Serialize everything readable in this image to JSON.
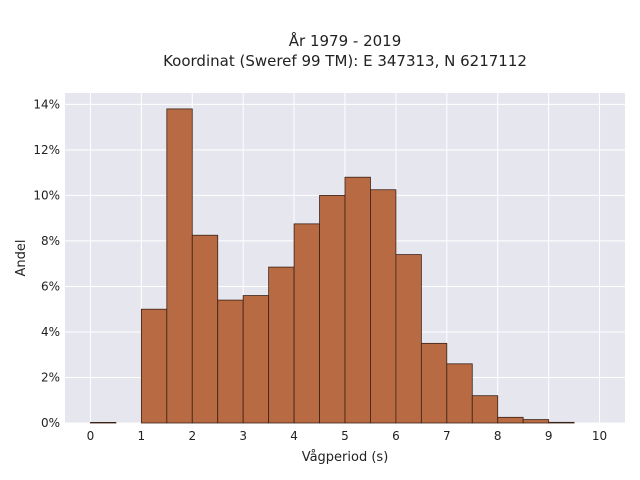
{
  "chart_data": {
    "type": "bar",
    "title_lines": [
      "År 1979 - 2019",
      "Koordinat (Sweref 99 TM): E 347313, N 6217112"
    ],
    "xlabel": "Vågperiod (s)",
    "ylabel": "Andel",
    "xlim": [
      -0.5,
      10.5
    ],
    "ylim": [
      0,
      14.5
    ],
    "xticks": [
      0,
      1,
      2,
      3,
      4,
      5,
      6,
      7,
      8,
      9,
      10
    ],
    "xtick_labels": [
      "0",
      "1",
      "2",
      "3",
      "4",
      "5",
      "6",
      "7",
      "8",
      "9",
      "10"
    ],
    "yticks": [
      0,
      2,
      4,
      6,
      8,
      10,
      12,
      14
    ],
    "ytick_labels": [
      "0%",
      "2%",
      "4%",
      "6%",
      "8%",
      "10%",
      "12%",
      "14%"
    ],
    "grid": true,
    "bin_width": 0.5,
    "bins": [
      {
        "start": 0.0,
        "value": 0.02
      },
      {
        "start": 1.0,
        "value": 5.0
      },
      {
        "start": 1.5,
        "value": 13.8
      },
      {
        "start": 2.0,
        "value": 8.25
      },
      {
        "start": 2.5,
        "value": 5.4
      },
      {
        "start": 3.0,
        "value": 5.6
      },
      {
        "start": 3.5,
        "value": 6.85
      },
      {
        "start": 4.0,
        "value": 8.75
      },
      {
        "start": 4.5,
        "value": 10.0
      },
      {
        "start": 5.0,
        "value": 10.8
      },
      {
        "start": 5.5,
        "value": 10.25
      },
      {
        "start": 6.0,
        "value": 7.4
      },
      {
        "start": 6.5,
        "value": 3.5
      },
      {
        "start": 7.0,
        "value": 2.6
      },
      {
        "start": 7.5,
        "value": 1.2
      },
      {
        "start": 8.0,
        "value": 0.25
      },
      {
        "start": 8.5,
        "value": 0.15
      },
      {
        "start": 9.0,
        "value": 0.03
      }
    ]
  },
  "colors": {
    "bar_fill": "#b86a43",
    "bar_stroke": "#3b2216",
    "plot_bg": "#e6e6ef",
    "grid": "#ffffff"
  }
}
